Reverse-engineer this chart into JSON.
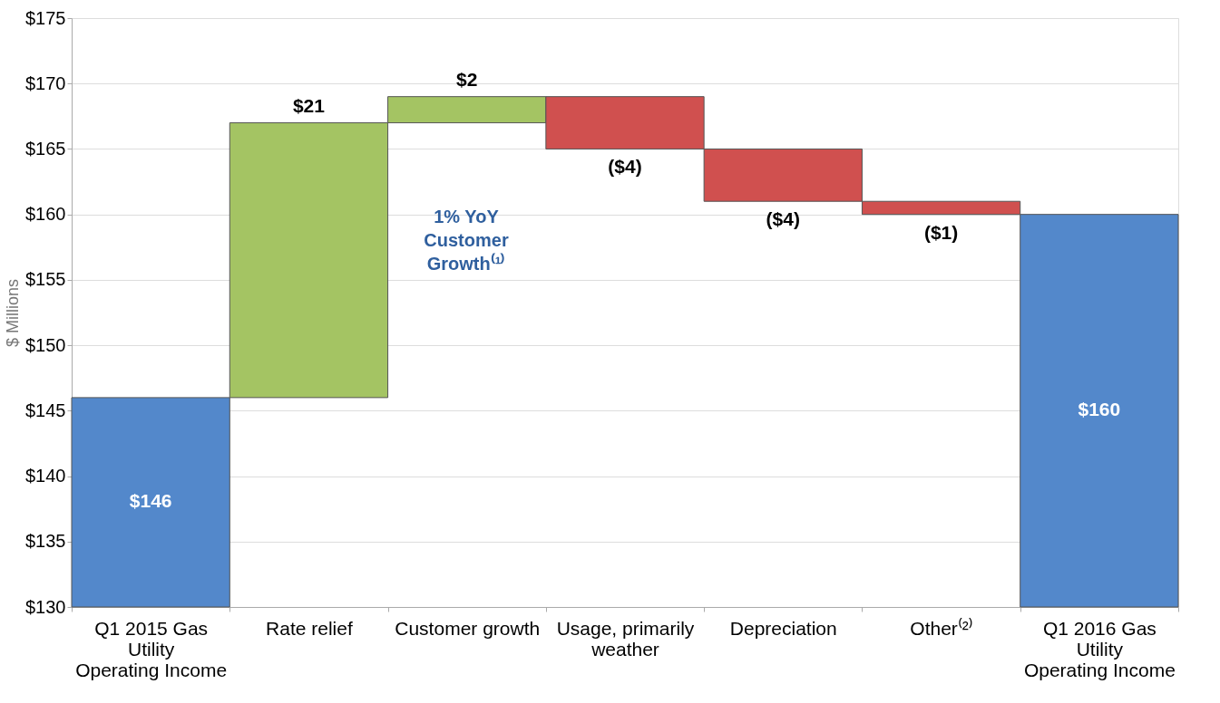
{
  "chart_data": {
    "type": "bar",
    "ylabel": "$ Millions",
    "categories": [
      "Q1 2015 Gas Utility Operating Income",
      "Rate relief",
      "Customer growth",
      "Usage, primarily weather",
      "Depreciation",
      "Other⁽²⁾",
      "Q1 2016 Gas Utility Operating Income"
    ],
    "values": [
      146,
      21,
      2,
      -4,
      -4,
      -1,
      160
    ],
    "base": [
      null,
      146,
      167,
      169,
      165,
      161,
      null
    ],
    "colors": [
      "#5388cb",
      "#a4c463",
      "#a4c463",
      "#d0504f",
      "#d0504f",
      "#d0504f",
      "#5388cb"
    ],
    "value_labels": [
      "$146",
      "$21",
      "$2",
      "($4)",
      "($4)",
      "($1)",
      "$160"
    ],
    "ylim": [
      130,
      175
    ],
    "yticks": [
      {
        "value": 130,
        "label": "$130"
      },
      {
        "value": 135,
        "label": "$135"
      },
      {
        "value": 140,
        "label": "$140"
      },
      {
        "value": 145,
        "label": "$145"
      },
      {
        "value": 150,
        "label": "$150"
      },
      {
        "value": 155,
        "label": "$155"
      },
      {
        "value": 160,
        "label": "$160"
      },
      {
        "value": 165,
        "label": "$165"
      },
      {
        "value": 170,
        "label": "$170"
      },
      {
        "value": 175,
        "label": "$175"
      }
    ],
    "grid": "y",
    "annotations": [
      "1% YoY\nCustomer\nGrowth⁽¹⁾"
    ]
  }
}
